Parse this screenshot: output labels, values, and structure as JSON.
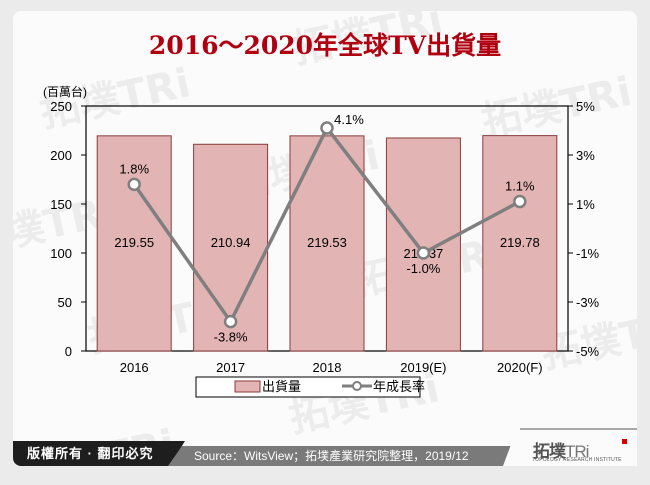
{
  "title": "2016～2020年全球TV出貨量",
  "chart_data": {
    "type": "bar+line",
    "title": "2016～2020年全球TV出貨量",
    "categories": [
      "2016",
      "2017",
      "2018",
      "2019(E)",
      "2020(F)"
    ],
    "series": [
      {
        "name": "出貨量",
        "type": "bar",
        "axis": "left",
        "values": [
          219.55,
          210.94,
          219.53,
          217.37,
          219.78
        ],
        "labels": [
          "219.55",
          "210.94",
          "219.53",
          "217.37",
          "219.78"
        ],
        "color": "#e3b4b4"
      },
      {
        "name": "年成長率",
        "type": "line",
        "axis": "right",
        "values": [
          1.8,
          -3.8,
          4.1,
          -1.0,
          1.1
        ],
        "labels": [
          "1.8%",
          "-3.8%",
          "4.1%",
          "-1.0%",
          "1.1%"
        ],
        "color": "#7f7f7f"
      }
    ],
    "ylabel": "(百萬台)",
    "ylim": [
      0,
      250
    ],
    "yticks": [
      "0",
      "50",
      "100",
      "150",
      "200",
      "250"
    ],
    "y2lim": [
      -5,
      5
    ],
    "y2ticks": [
      "-5%",
      "-3%",
      "-1%",
      "1%",
      "3%",
      "5%"
    ],
    "legend_position": "bottom",
    "grid": false
  },
  "legend": {
    "bar_label": "出貨量",
    "line_label": "年成長率"
  },
  "footer": {
    "copyright": "版權所有 · 翻印必究",
    "source": "Source：WitsView；拓墣產業研究院整理，2019/12",
    "logo_cn": "拓墣",
    "logo_en": "TRi",
    "logo_sub": "TOPOLOGY RESEARCH INSTITUTE"
  },
  "colors": {
    "title": "#b00010",
    "bar_fill": "#e3b4b4",
    "bar_stroke": "#8b3a3a",
    "line": "#7f7f7f"
  }
}
